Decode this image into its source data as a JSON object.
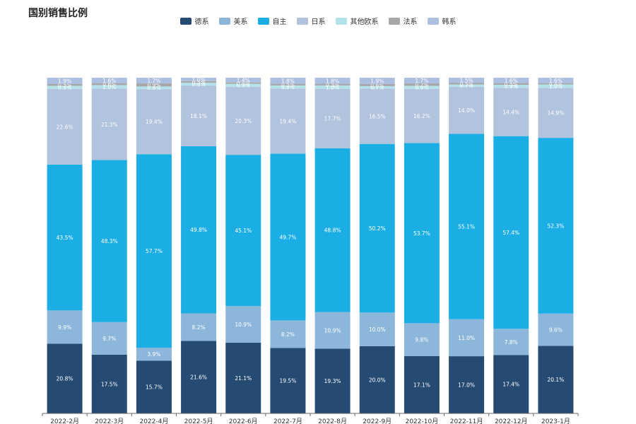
{
  "chart_data": {
    "type": "bar",
    "stacked": true,
    "normalized": true,
    "title": "国别销售比例",
    "legend_position": "top",
    "grid": false,
    "categories": [
      "2022-2月",
      "2022-3月",
      "2022-4月",
      "2022-5月",
      "2022-6月",
      "2022-7月",
      "2022-8月",
      "2022-9月",
      "2022-10月",
      "2022-11月",
      "2022-12月",
      "2023-1月"
    ],
    "series": [
      {
        "name": "德系",
        "color": "#264B73",
        "values": [
          20.8,
          17.5,
          15.7,
          21.6,
          21.1,
          19.5,
          19.3,
          20.0,
          17.1,
          17.0,
          17.4,
          20.1
        ]
      },
      {
        "name": "美系",
        "color": "#8DB7DA",
        "values": [
          9.9,
          9.7,
          3.9,
          8.2,
          10.9,
          8.2,
          10.9,
          10.0,
          9.8,
          11.0,
          7.8,
          9.6
        ]
      },
      {
        "name": "自主",
        "color": "#1BAEE4",
        "values": [
          43.5,
          48.3,
          57.7,
          49.8,
          45.1,
          49.7,
          48.8,
          50.2,
          53.7,
          55.1,
          57.4,
          52.3
        ]
      },
      {
        "name": "日系",
        "color": "#B2C3DD",
        "values": [
          22.6,
          21.3,
          19.4,
          18.1,
          20.3,
          19.4,
          17.7,
          16.5,
          16.2,
          14.0,
          14.4,
          14.9
        ]
      },
      {
        "name": "其他欧系",
        "color": "#B3E2EA",
        "values": [
          0.9,
          1.0,
          0.8,
          0.8,
          0.9,
          0.9,
          1.0,
          0.7,
          0.9,
          0.7,
          0.9,
          1.0
        ]
      },
      {
        "name": "法系",
        "color": "#A6A6A6",
        "values": [
          0.5,
          0.6,
          0.9,
          0.5,
          0.4,
          0.5,
          0.5,
          0.6,
          0.7,
          0.5,
          0.5,
          0.4
        ]
      },
      {
        "name": "韩系",
        "color": "#ADBFE0",
        "values": [
          1.9,
          1.6,
          1.7,
          1.0,
          1.4,
          1.8,
          1.8,
          1.9,
          1.7,
          1.5,
          1.6,
          1.6
        ]
      }
    ],
    "value_suffix": "%"
  }
}
